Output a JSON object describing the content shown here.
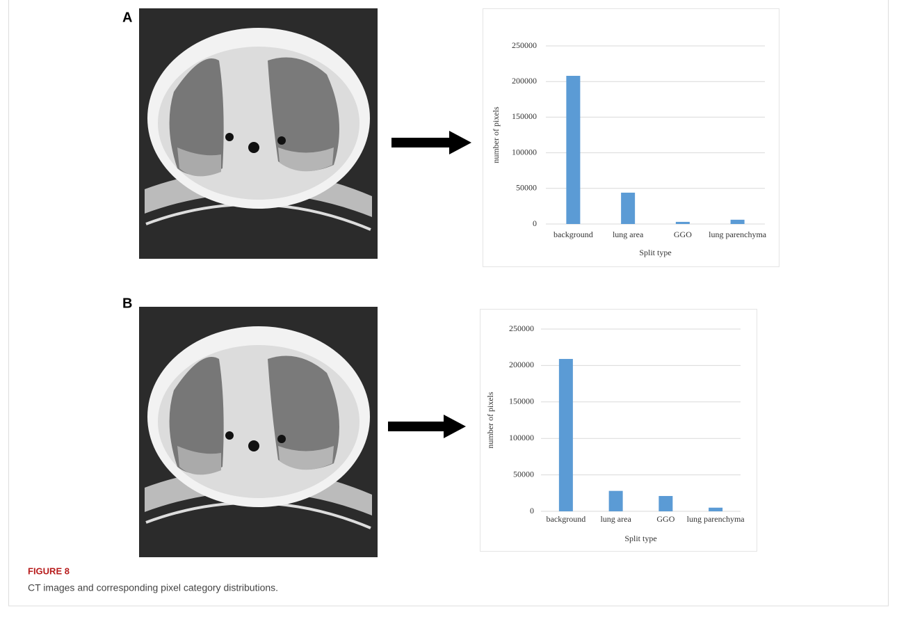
{
  "figure": {
    "panels": [
      "A",
      "B"
    ],
    "label": "FIGURE 8",
    "caption": "CT images and corresponding pixel category distributions."
  },
  "chart_data": [
    {
      "type": "bar",
      "ylabel": "number of pixels",
      "xlabel": "Split type",
      "categories": [
        "background",
        "lung area",
        "GGO",
        "lung parenchyma"
      ],
      "values": [
        208000,
        44000,
        3000,
        6000
      ],
      "color": "#5b9bd5",
      "ylim": [
        0,
        250000
      ],
      "yticks": [
        0,
        50000,
        100000,
        150000,
        200000,
        250000
      ],
      "grid": true
    },
    {
      "type": "bar",
      "ylabel": "number of pixels",
      "xlabel": "Split type",
      "categories": [
        "background",
        "lung area",
        "GGO",
        "lung parenchyma"
      ],
      "values": [
        209000,
        28000,
        21000,
        5000
      ],
      "color": "#5b9bd5",
      "ylim": [
        0,
        250000
      ],
      "yticks": [
        0,
        50000,
        100000,
        150000,
        200000,
        250000
      ],
      "grid": true
    }
  ]
}
